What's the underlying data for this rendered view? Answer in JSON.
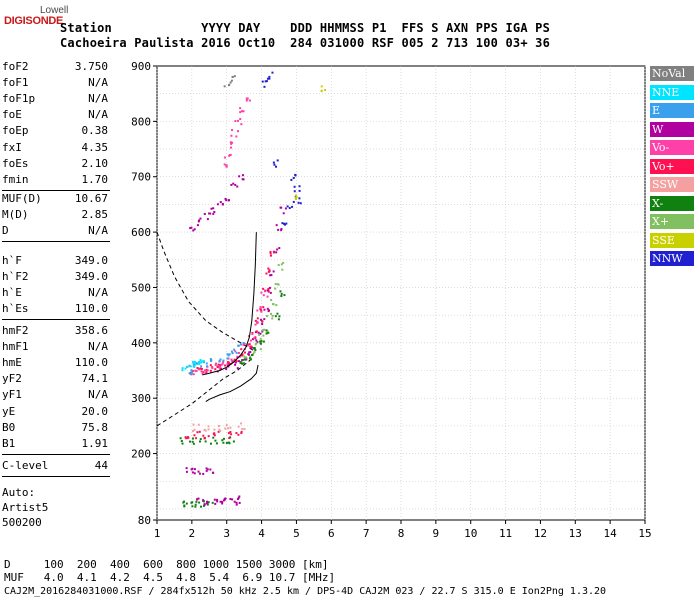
{
  "logo": {
    "line1": "Lowell",
    "line2": "DIGISONDE"
  },
  "header": {
    "row1": "Station            YYYY DAY    DDD HHMMSS P1  FFS S AXN PPS IGA PS",
    "row2": "Cachoeira Paulista 2016 Oct10  284 031000 RSF 005 2 713 100 03+ 36"
  },
  "params": {
    "group1": [
      {
        "label": "foF2",
        "value": "3.750"
      },
      {
        "label": "foF1",
        "value": "N/A"
      },
      {
        "label": "foF1p",
        "value": "N/A"
      },
      {
        "label": "foE",
        "value": "N/A"
      },
      {
        "label": "foEp",
        "value": "0.38"
      },
      {
        "label": "fxI",
        "value": "4.35"
      },
      {
        "label": "foEs",
        "value": "2.10"
      },
      {
        "label": "fmin",
        "value": "1.70"
      }
    ],
    "group2": [
      {
        "label": "MUF(D)",
        "value": "10.67"
      },
      {
        "label": "M(D)",
        "value": "2.85"
      },
      {
        "label": "D",
        "value": "N/A"
      }
    ],
    "group3": [
      {
        "label": "h`F",
        "value": "349.0"
      },
      {
        "label": "h`F2",
        "value": "349.0"
      },
      {
        "label": "h`E",
        "value": "N/A"
      },
      {
        "label": "h`Es",
        "value": "110.0"
      }
    ],
    "group4": [
      {
        "label": "hmF2",
        "value": "358.6"
      },
      {
        "label": "hmF1",
        "value": "N/A"
      },
      {
        "label": "hmE",
        "value": "110.0"
      },
      {
        "label": "yF2",
        "value": "74.1"
      },
      {
        "label": "yF1",
        "value": "N/A"
      },
      {
        "label": "yE",
        "value": "20.0"
      },
      {
        "label": "B0",
        "value": "75.8"
      },
      {
        "label": "B1",
        "value": "1.91"
      }
    ],
    "group5": [
      {
        "label": "C-level",
        "value": "44"
      }
    ],
    "auto": [
      "Auto:",
      "Artist5",
      "500200"
    ]
  },
  "legend": [
    {
      "label": "NoVal",
      "color": "#808080"
    },
    {
      "label": "NNE",
      "color": "#00e5ff"
    },
    {
      "label": "E",
      "color": "#3aa0ee"
    },
    {
      "label": "W",
      "color": "#b000a0"
    },
    {
      "label": "Vo-",
      "color": "#ff40a8"
    },
    {
      "label": "Vo+",
      "color": "#ff1050"
    },
    {
      "label": "SSW",
      "color": "#f4a0a0"
    },
    {
      "label": "X-",
      "color": "#108010"
    },
    {
      "label": "X+",
      "color": "#80c060"
    },
    {
      "label": "SSE",
      "color": "#c8d000"
    },
    {
      "label": "NNW",
      "color": "#2020d0"
    }
  ],
  "footer": {
    "row1": "D     100  200  400  600  800 1000 1500 3000 [km]",
    "row2": "MUF   4.0  4.1  4.2  4.5  4.8  5.4  6.9 10.7 [MHz]",
    "row3": "CAJ2M_2016284031000.RSF / 284fx512h 50 kHz 2.5 km / DPS-4D CAJ2M 023 / 22.7 S 315.0 E Ion2Png 1.3.20"
  },
  "chart_data": {
    "type": "scatter",
    "title": "",
    "xlabel": "",
    "ylabel": "",
    "xlim": [
      1,
      15
    ],
    "ylim": [
      80,
      900
    ],
    "x_ticks": [
      1,
      2,
      3,
      4,
      5,
      6,
      7,
      8,
      9,
      10,
      11,
      12,
      13,
      14,
      15
    ],
    "y_ticks": [
      80,
      200,
      300,
      400,
      500,
      600,
      700,
      800,
      900
    ],
    "grid": true,
    "legend_placement": "right",
    "trace_series": [
      {
        "name": "W",
        "color": "#b000a0",
        "points": [
          [
            2.8,
            355
          ],
          [
            3.0,
            358
          ],
          [
            3.2,
            362
          ],
          [
            3.4,
            368
          ],
          [
            3.6,
            378
          ],
          [
            3.7,
            390
          ],
          [
            3.8,
            405
          ],
          [
            3.9,
            420
          ],
          [
            4.0,
            440
          ],
          [
            4.1,
            465
          ],
          [
            4.2,
            495
          ],
          [
            4.3,
            530
          ],
          [
            4.4,
            570
          ],
          [
            4.5,
            610
          ],
          [
            4.6,
            640
          ]
        ]
      },
      {
        "name": "Vo+",
        "color": "#ff1050",
        "points": [
          [
            2.0,
            345
          ],
          [
            2.2,
            350
          ],
          [
            2.4,
            352
          ],
          [
            2.6,
            356
          ],
          [
            2.8,
            360
          ],
          [
            3.0,
            366
          ],
          [
            3.2,
            374
          ],
          [
            3.4,
            385
          ],
          [
            3.6,
            398
          ],
          [
            3.8,
            418
          ],
          [
            3.9,
            440
          ],
          [
            4.0,
            465
          ],
          [
            4.1,
            495
          ],
          [
            4.2,
            530
          ],
          [
            4.25,
            560
          ]
        ]
      },
      {
        "name": "Vo-",
        "color": "#ff40a8",
        "points": [
          [
            2.1,
            348
          ],
          [
            2.3,
            352
          ],
          [
            2.5,
            355
          ],
          [
            2.7,
            360
          ],
          [
            2.9,
            365
          ],
          [
            3.1,
            372
          ],
          [
            3.3,
            382
          ],
          [
            3.5,
            395
          ],
          [
            3.7,
            412
          ],
          [
            3.85,
            435
          ],
          [
            3.95,
            460
          ],
          [
            4.05,
            490
          ]
        ]
      },
      {
        "name": "E",
        "color": "#3aa0ee",
        "points": [
          [
            1.9,
            352
          ],
          [
            2.0,
            358
          ],
          [
            2.2,
            362
          ],
          [
            2.4,
            365
          ],
          [
            2.6,
            368
          ],
          [
            2.8,
            372
          ],
          [
            3.0,
            378
          ],
          [
            3.2,
            386
          ],
          [
            3.4,
            396
          ]
        ]
      },
      {
        "name": "NNE",
        "color": "#00e5ff",
        "points": [
          [
            1.8,
            356
          ],
          [
            1.95,
            362
          ],
          [
            2.1,
            366
          ],
          [
            2.3,
            370
          ]
        ]
      },
      {
        "name": "X+",
        "color": "#80c060",
        "points": [
          [
            3.5,
            372
          ],
          [
            3.7,
            380
          ],
          [
            3.9,
            395
          ],
          [
            4.0,
            410
          ],
          [
            4.1,
            425
          ],
          [
            4.2,
            448
          ],
          [
            4.3,
            475
          ],
          [
            4.4,
            505
          ],
          [
            4.5,
            540
          ]
        ]
      },
      {
        "name": "X-",
        "color": "#108010",
        "points": [
          [
            3.4,
            368
          ],
          [
            3.6,
            375
          ],
          [
            3.8,
            388
          ],
          [
            4.0,
            400
          ],
          [
            4.2,
            420
          ],
          [
            4.4,
            450
          ],
          [
            4.6,
            490
          ]
        ]
      },
      {
        "name": "NNW",
        "color": "#2020d0",
        "points": [
          [
            4.6,
            620
          ],
          [
            4.8,
            650
          ],
          [
            5.0,
            660
          ],
          [
            5.0,
            680
          ],
          [
            4.9,
            700
          ],
          [
            4.4,
            725
          ]
        ]
      },
      {
        "name": "W",
        "color": "#b000a0",
        "points": [
          [
            2.0,
            605
          ],
          [
            2.2,
            620
          ],
          [
            2.4,
            630
          ],
          [
            2.6,
            640
          ],
          [
            2.8,
            655
          ],
          [
            3.0,
            665
          ],
          [
            3.2,
            685
          ],
          [
            3.4,
            700
          ]
        ]
      },
      {
        "name": "Vo-",
        "color": "#ff40a8",
        "points": [
          [
            2.9,
            720
          ],
          [
            3.0,
            740
          ],
          [
            3.1,
            760
          ],
          [
            3.2,
            780
          ],
          [
            3.3,
            800
          ],
          [
            3.4,
            820
          ],
          [
            3.6,
            840
          ]
        ]
      },
      {
        "name": "NNW",
        "color": "#2020d0",
        "points": [
          [
            4.1,
            870
          ],
          [
            4.2,
            885
          ]
        ]
      },
      {
        "name": "NoVal",
        "color": "#808080",
        "points": [
          [
            3.0,
            870
          ],
          [
            3.2,
            880
          ]
        ]
      },
      {
        "name": "X-",
        "color": "#108010",
        "points": [
          [
            1.7,
            225
          ],
          [
            2.0,
            225
          ],
          [
            2.3,
            225
          ],
          [
            2.6,
            225
          ],
          [
            2.9,
            225
          ],
          [
            3.1,
            225
          ]
        ]
      },
      {
        "name": "Vo+",
        "color": "#ff1050",
        "points": [
          [
            1.8,
            235
          ],
          [
            2.1,
            235
          ],
          [
            2.4,
            235
          ],
          [
            2.7,
            235
          ],
          [
            3.0,
            235
          ],
          [
            3.3,
            240
          ]
        ]
      },
      {
        "name": "SSW",
        "color": "#f4a0a0",
        "points": [
          [
            2.1,
            248
          ],
          [
            2.4,
            248
          ],
          [
            2.7,
            248
          ],
          [
            3.0,
            248
          ],
          [
            3.4,
            250
          ]
        ]
      },
      {
        "name": "W",
        "color": "#b000a0",
        "points": [
          [
            1.9,
            170
          ],
          [
            2.1,
            170
          ],
          [
            2.3,
            170
          ],
          [
            2.5,
            170
          ]
        ]
      },
      {
        "name": "X-",
        "color": "#108010",
        "points": [
          [
            1.7,
            110
          ],
          [
            1.9,
            110
          ],
          [
            2.1,
            110
          ],
          [
            2.3,
            110
          ],
          [
            2.5,
            110
          ]
        ]
      },
      {
        "name": "W",
        "color": "#b000a0",
        "points": [
          [
            2.2,
            115
          ],
          [
            2.4,
            115
          ],
          [
            2.6,
            115
          ],
          [
            2.8,
            115
          ],
          [
            3.0,
            115
          ],
          [
            3.2,
            115
          ],
          [
            3.3,
            118
          ]
        ]
      },
      {
        "name": "SSE",
        "color": "#c8d000",
        "points": [
          [
            5.7,
            860
          ],
          [
            4.9,
            662
          ]
        ]
      }
    ],
    "profile_line": {
      "color": "#000000",
      "points": [
        [
          2.3,
          342
        ],
        [
          2.5,
          345
        ],
        [
          2.8,
          350
        ],
        [
          3.0,
          356
        ],
        [
          3.2,
          365
        ],
        [
          3.4,
          378
        ],
        [
          3.55,
          392
        ],
        [
          3.65,
          410
        ],
        [
          3.72,
          440
        ],
        [
          3.78,
          490
        ],
        [
          3.82,
          540
        ],
        [
          3.85,
          600
        ]
      ]
    },
    "profile_lower": {
      "color": "#000000",
      "points": [
        [
          3.9,
          360
        ],
        [
          3.85,
          345
        ],
        [
          3.7,
          335
        ],
        [
          3.4,
          322
        ],
        [
          3.1,
          312
        ],
        [
          2.8,
          306
        ],
        [
          2.5,
          298
        ],
        [
          2.4,
          294
        ]
      ]
    },
    "dashed_curve": {
      "color": "#000000",
      "points": [
        [
          1.0,
          600
        ],
        [
          1.2,
          565
        ],
        [
          1.5,
          520
        ],
        [
          1.9,
          475
        ],
        [
          2.4,
          440
        ],
        [
          2.9,
          418
        ],
        [
          3.4,
          400
        ],
        [
          3.8,
          385
        ],
        [
          3.7,
          370
        ],
        [
          3.3,
          350
        ],
        [
          2.9,
          335
        ],
        [
          2.5,
          315
        ],
        [
          2.0,
          290
        ],
        [
          1.5,
          270
        ],
        [
          1.0,
          250
        ]
      ]
    }
  }
}
